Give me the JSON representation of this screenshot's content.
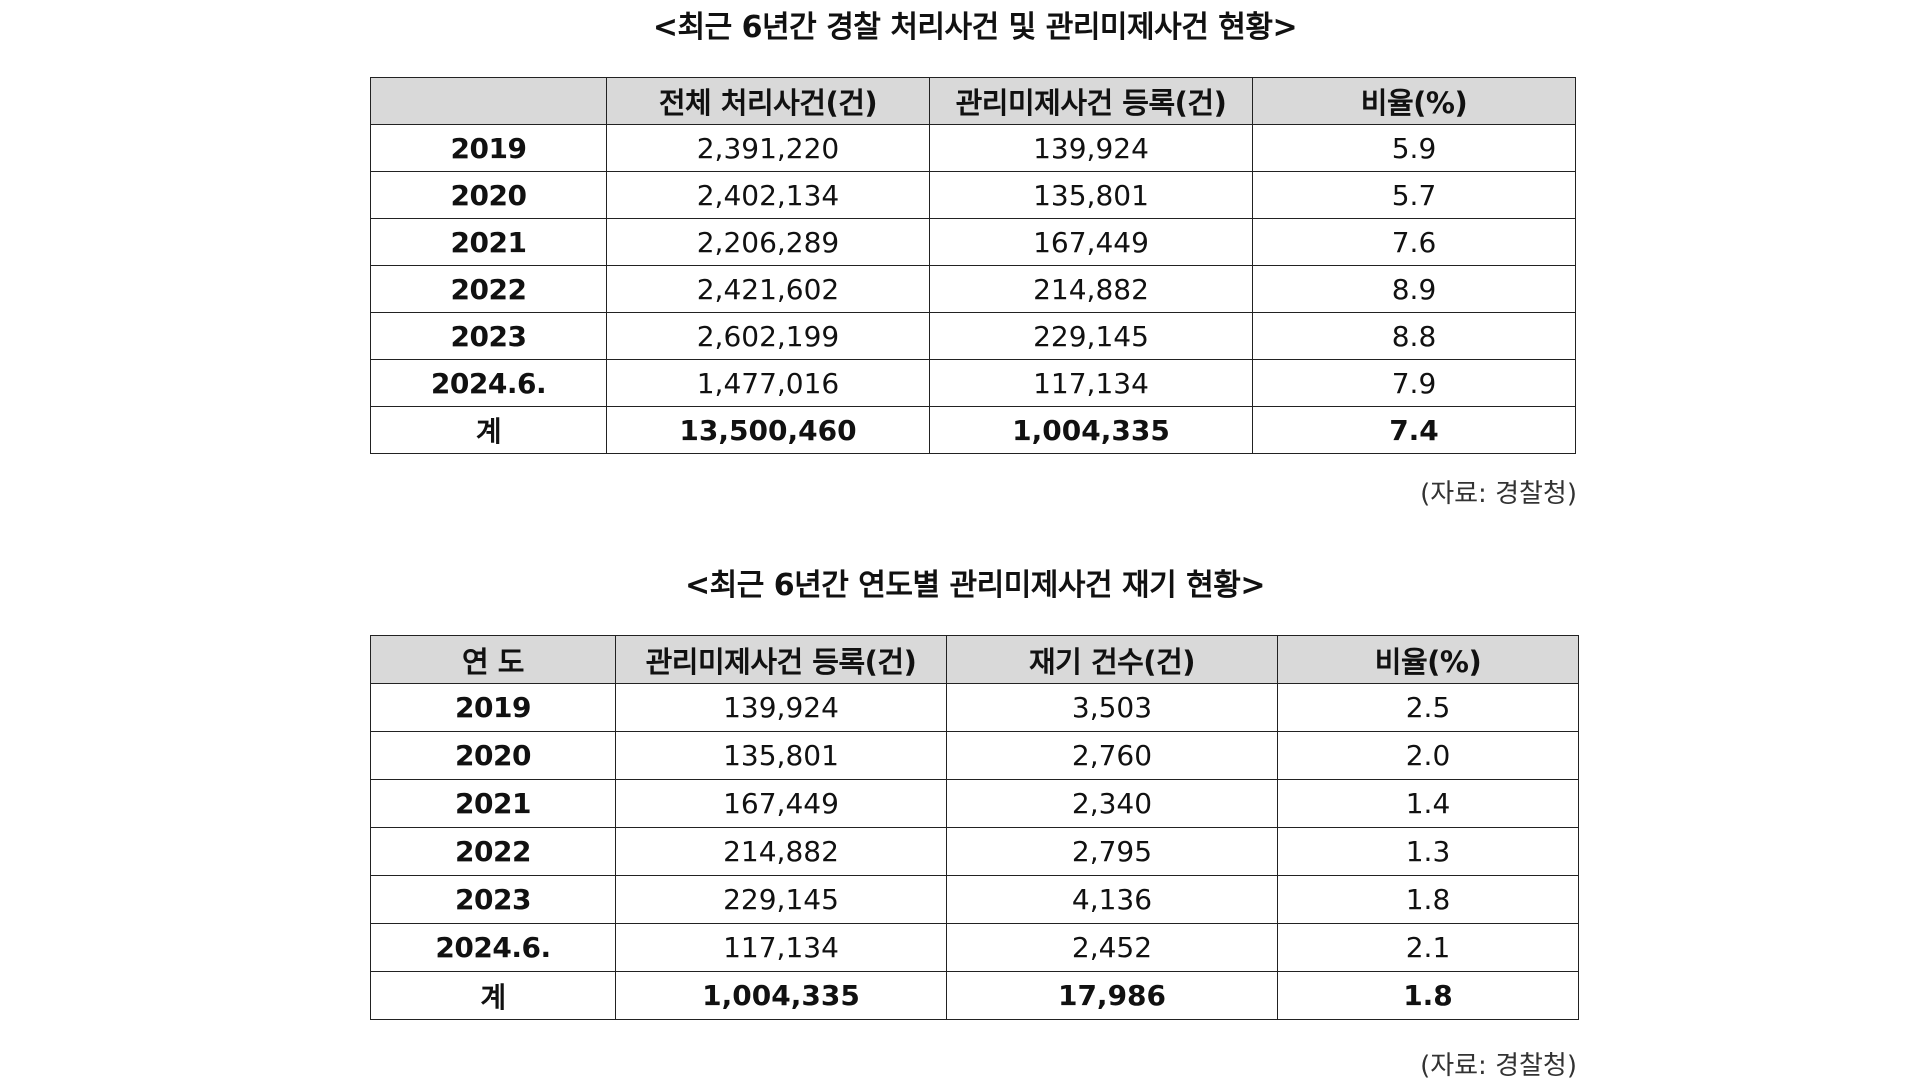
{
  "table1": {
    "title": "<최근 6년간 경찰 처리사건 및 관리미제사건 현황>",
    "headers": [
      "",
      "전체 처리사건(건)",
      "관리미제사건 등록(건)",
      "비율(%)"
    ],
    "rows": [
      {
        "year": "2019",
        "total": "2,391,220",
        "unsolved": "139,924",
        "ratio": "5.9"
      },
      {
        "year": "2020",
        "total": "2,402,134",
        "unsolved": "135,801",
        "ratio": "5.7"
      },
      {
        "year": "2021",
        "total": "2,206,289",
        "unsolved": "167,449",
        "ratio": "7.6"
      },
      {
        "year": "2022",
        "total": "2,421,602",
        "unsolved": "214,882",
        "ratio": "8.9"
      },
      {
        "year": "2023",
        "total": "2,602,199",
        "unsolved": "229,145",
        "ratio": "8.8"
      },
      {
        "year": "2024.6.",
        "total": "1,477,016",
        "unsolved": "117,134",
        "ratio": "7.9"
      }
    ],
    "sum": {
      "year": "계",
      "total": "13,500,460",
      "unsolved": "1,004,335",
      "ratio": "7.4"
    },
    "source": "(자료: 경찰청)"
  },
  "table2": {
    "title": "<최근 6년간 연도별 관리미제사건 재기 현황>",
    "headers": [
      "연 도",
      "관리미제사건 등록(건)",
      "재기 건수(건)",
      "비율(%)"
    ],
    "rows": [
      {
        "year": "2019",
        "unsolved": "139,924",
        "reopened": "3,503",
        "ratio": "2.5"
      },
      {
        "year": "2020",
        "unsolved": "135,801",
        "reopened": "2,760",
        "ratio": "2.0"
      },
      {
        "year": "2021",
        "unsolved": "167,449",
        "reopened": "2,340",
        "ratio": "1.4"
      },
      {
        "year": "2022",
        "unsolved": "214,882",
        "reopened": "2,795",
        "ratio": "1.3"
      },
      {
        "year": "2023",
        "unsolved": "229,145",
        "reopened": "4,136",
        "ratio": "1.8"
      },
      {
        "year": "2024.6.",
        "unsolved": "117,134",
        "reopened": "2,452",
        "ratio": "2.1"
      }
    ],
    "sum": {
      "year": "계",
      "unsolved": "1,004,335",
      "reopened": "17,986",
      "ratio": "1.8"
    },
    "source": "(자료: 경찰청)"
  },
  "colors": {
    "header_bg": "#d9d9d9",
    "border": "#222222",
    "text": "#111111"
  }
}
